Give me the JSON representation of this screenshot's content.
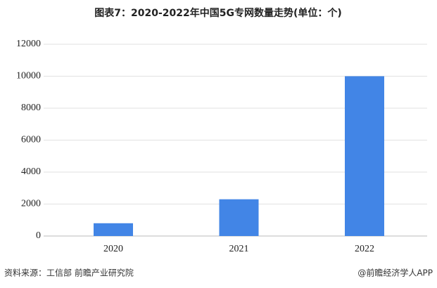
{
  "chart_data": {
    "type": "bar",
    "title": "图表7：2020-2022年中国5G专网数量走势(单位：个)",
    "categories": [
      "2020",
      "2021",
      "2022"
    ],
    "values": [
      800,
      2300,
      10000
    ],
    "color": "#4285e6",
    "ylim": [
      0,
      12000
    ],
    "yticks": [
      0,
      2000,
      4000,
      6000,
      8000,
      10000,
      12000
    ],
    "grid": true
  },
  "footer": {
    "source": "资料来源：工信部 前瞻产业研究院",
    "credit": "@前瞻经济学人APP"
  }
}
